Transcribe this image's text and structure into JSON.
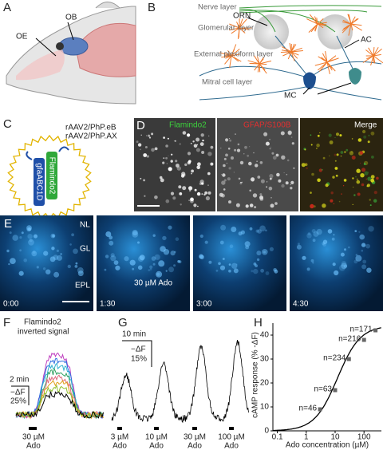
{
  "panels": {
    "a": {
      "label": "A",
      "ob": "OB",
      "oe": "OE"
    },
    "b": {
      "label": "B",
      "layers": [
        "Nerve layer",
        "Glomerular layer",
        "External plexiform layer",
        "Mitral cell layer"
      ],
      "orn": "ORN",
      "ac": "AC",
      "mc": "MC"
    },
    "c": {
      "label": "C",
      "vectors": [
        "rAAV2/PhP.eB",
        "rAAV2/PhP.AX"
      ],
      "promoter": "gfaABC1D",
      "sensor": "Flamindo2"
    },
    "d": {
      "label": "D",
      "images": [
        "Flamindo2",
        "GFAP/S100B",
        "Merge"
      ]
    },
    "e": {
      "label": "E",
      "layers": [
        "NL",
        "GL",
        "EPL"
      ],
      "times": [
        "0:00",
        "1:30",
        "3:00",
        "4:30"
      ],
      "stimulus": "30 µM Ado"
    },
    "f": {
      "label": "F",
      "title": [
        "Flamindo2",
        "inverted signal"
      ],
      "scale_time": "2 min",
      "scale_signal": [
        "−ΔF",
        "25%"
      ],
      "stimulus": [
        "30 µM",
        "Ado"
      ]
    },
    "g": {
      "label": "G",
      "scale_time": "10 min",
      "scale_signal": [
        "−ΔF",
        "15%"
      ],
      "stimuli": [
        [
          "3 µM",
          "Ado"
        ],
        [
          "10 µM",
          "Ado"
        ],
        [
          "30 µM",
          "Ado"
        ],
        [
          "100 µM",
          "Ado"
        ]
      ]
    },
    "h": {
      "label": "H",
      "y_label": "cAMP response (% -ΔF)",
      "x_label": "Ado concentration (µM)",
      "log_x": true,
      "xlim": [
        0.07,
        400
      ],
      "ylim": [
        0,
        45
      ],
      "xticks": [
        0.1,
        1,
        10,
        100
      ],
      "yticks": [
        0,
        10,
        20,
        30,
        40
      ],
      "x": [
        3,
        10,
        30,
        100,
        250
      ],
      "values": [
        9,
        17,
        30,
        38,
        42
      ],
      "labels": [
        "n=46",
        "n=63",
        "n=234",
        "n=216",
        "n=171"
      ]
    }
  }
}
